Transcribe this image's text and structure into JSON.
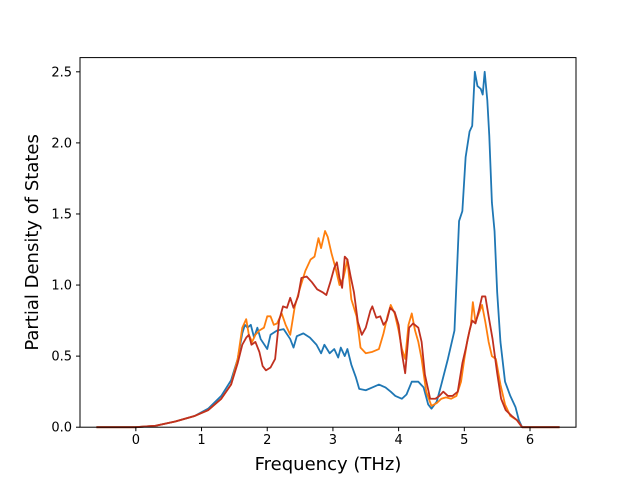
{
  "chart_data": {
    "type": "line",
    "title": "",
    "xlabel": "Frequency (THz)",
    "ylabel": "Partial Density of States",
    "xlim": [
      -0.85,
      6.7
    ],
    "ylim": [
      0.0,
      2.6
    ],
    "xticks": [
      0,
      1,
      2,
      3,
      4,
      5,
      6
    ],
    "yticks": [
      0.0,
      0.5,
      1.0,
      1.5,
      2.0,
      2.5
    ],
    "xtick_labels": [
      "0",
      "1",
      "2",
      "3",
      "4",
      "5",
      "6"
    ],
    "ytick_labels": [
      "0.0",
      "0.5",
      "1.0",
      "1.5",
      "2.0",
      "2.5"
    ],
    "grid": false,
    "legend": "none",
    "series": [
      {
        "color": "#1f77b4",
        "points": [
          [
            -0.6,
            0
          ],
          [
            0,
            0
          ],
          [
            0.3,
            0.01
          ],
          [
            0.6,
            0.04
          ],
          [
            0.9,
            0.08
          ],
          [
            1.1,
            0.13
          ],
          [
            1.3,
            0.22
          ],
          [
            1.45,
            0.33
          ],
          [
            1.55,
            0.48
          ],
          [
            1.62,
            0.66
          ],
          [
            1.66,
            0.72
          ],
          [
            1.7,
            0.7
          ],
          [
            1.75,
            0.72
          ],
          [
            1.8,
            0.63
          ],
          [
            1.85,
            0.7
          ],
          [
            1.9,
            0.62
          ],
          [
            2.0,
            0.55
          ],
          [
            2.05,
            0.65
          ],
          [
            2.15,
            0.68
          ],
          [
            2.25,
            0.69
          ],
          [
            2.35,
            0.62
          ],
          [
            2.4,
            0.56
          ],
          [
            2.45,
            0.64
          ],
          [
            2.55,
            0.66
          ],
          [
            2.65,
            0.63
          ],
          [
            2.75,
            0.58
          ],
          [
            2.82,
            0.52
          ],
          [
            2.87,
            0.58
          ],
          [
            2.95,
            0.52
          ],
          [
            3.02,
            0.55
          ],
          [
            3.08,
            0.49
          ],
          [
            3.12,
            0.56
          ],
          [
            3.18,
            0.5
          ],
          [
            3.22,
            0.55
          ],
          [
            3.28,
            0.44
          ],
          [
            3.35,
            0.35
          ],
          [
            3.4,
            0.27
          ],
          [
            3.5,
            0.26
          ],
          [
            3.6,
            0.28
          ],
          [
            3.7,
            0.3
          ],
          [
            3.8,
            0.28
          ],
          [
            3.88,
            0.25
          ],
          [
            3.95,
            0.22
          ],
          [
            4.05,
            0.2
          ],
          [
            4.12,
            0.23
          ],
          [
            4.2,
            0.32
          ],
          [
            4.3,
            0.32
          ],
          [
            4.38,
            0.28
          ],
          [
            4.45,
            0.16
          ],
          [
            4.5,
            0.13
          ],
          [
            4.58,
            0.18
          ],
          [
            4.65,
            0.3
          ],
          [
            4.75,
            0.48
          ],
          [
            4.85,
            0.68
          ],
          [
            4.92,
            1.45
          ],
          [
            4.97,
            1.52
          ],
          [
            5.02,
            1.9
          ],
          [
            5.08,
            2.08
          ],
          [
            5.12,
            2.12
          ],
          [
            5.16,
            2.5
          ],
          [
            5.2,
            2.4
          ],
          [
            5.25,
            2.38
          ],
          [
            5.28,
            2.34
          ],
          [
            5.31,
            2.5
          ],
          [
            5.35,
            2.3
          ],
          [
            5.38,
            2.05
          ],
          [
            5.42,
            1.58
          ],
          [
            5.46,
            1.38
          ],
          [
            5.5,
            0.95
          ],
          [
            5.55,
            0.6
          ],
          [
            5.62,
            0.32
          ],
          [
            5.7,
            0.22
          ],
          [
            5.78,
            0.14
          ],
          [
            5.83,
            0.05
          ],
          [
            5.88,
            0.0
          ],
          [
            6.0,
            0.0
          ],
          [
            6.45,
            0.0
          ]
        ]
      },
      {
        "color": "#ff7f0e",
        "points": [
          [
            -0.6,
            0
          ],
          [
            0,
            0
          ],
          [
            0.3,
            0.01
          ],
          [
            0.6,
            0.04
          ],
          [
            0.9,
            0.08
          ],
          [
            1.1,
            0.12
          ],
          [
            1.3,
            0.2
          ],
          [
            1.45,
            0.3
          ],
          [
            1.55,
            0.48
          ],
          [
            1.62,
            0.7
          ],
          [
            1.68,
            0.76
          ],
          [
            1.72,
            0.65
          ],
          [
            1.77,
            0.6
          ],
          [
            1.82,
            0.65
          ],
          [
            1.88,
            0.68
          ],
          [
            1.95,
            0.7
          ],
          [
            2.0,
            0.78
          ],
          [
            2.05,
            0.78
          ],
          [
            2.1,
            0.72
          ],
          [
            2.15,
            0.73
          ],
          [
            2.22,
            0.8
          ],
          [
            2.28,
            0.72
          ],
          [
            2.35,
            0.65
          ],
          [
            2.42,
            0.85
          ],
          [
            2.5,
            0.98
          ],
          [
            2.58,
            1.1
          ],
          [
            2.66,
            1.18
          ],
          [
            2.72,
            1.2
          ],
          [
            2.78,
            1.33
          ],
          [
            2.82,
            1.26
          ],
          [
            2.88,
            1.38
          ],
          [
            2.92,
            1.34
          ],
          [
            2.98,
            1.22
          ],
          [
            3.04,
            1.12
          ],
          [
            3.1,
            1.0
          ],
          [
            3.16,
            1.05
          ],
          [
            3.22,
            1.18
          ],
          [
            3.28,
            0.9
          ],
          [
            3.36,
            0.78
          ],
          [
            3.42,
            0.56
          ],
          [
            3.5,
            0.52
          ],
          [
            3.6,
            0.53
          ],
          [
            3.7,
            0.55
          ],
          [
            3.77,
            0.66
          ],
          [
            3.83,
            0.78
          ],
          [
            3.88,
            0.86
          ],
          [
            3.94,
            0.8
          ],
          [
            4.0,
            0.68
          ],
          [
            4.05,
            0.55
          ],
          [
            4.1,
            0.48
          ],
          [
            4.15,
            0.72
          ],
          [
            4.2,
            0.8
          ],
          [
            4.25,
            0.68
          ],
          [
            4.3,
            0.6
          ],
          [
            4.35,
            0.48
          ],
          [
            4.42,
            0.25
          ],
          [
            4.5,
            0.15
          ],
          [
            4.58,
            0.17
          ],
          [
            4.65,
            0.2
          ],
          [
            4.72,
            0.21
          ],
          [
            4.8,
            0.2
          ],
          [
            4.88,
            0.22
          ],
          [
            4.95,
            0.32
          ],
          [
            5.0,
            0.48
          ],
          [
            5.05,
            0.62
          ],
          [
            5.1,
            0.72
          ],
          [
            5.13,
            0.88
          ],
          [
            5.17,
            0.74
          ],
          [
            5.22,
            0.8
          ],
          [
            5.27,
            0.86
          ],
          [
            5.32,
            0.74
          ],
          [
            5.37,
            0.6
          ],
          [
            5.42,
            0.5
          ],
          [
            5.48,
            0.48
          ],
          [
            5.55,
            0.3
          ],
          [
            5.62,
            0.16
          ],
          [
            5.7,
            0.08
          ],
          [
            5.8,
            0.05
          ],
          [
            5.88,
            0.0
          ],
          [
            6.0,
            0.0
          ],
          [
            6.45,
            0.0
          ]
        ]
      },
      {
        "color": "#c0301f",
        "points": [
          [
            -0.6,
            0
          ],
          [
            0,
            0
          ],
          [
            0.3,
            0.01
          ],
          [
            0.6,
            0.04
          ],
          [
            0.9,
            0.08
          ],
          [
            1.1,
            0.12
          ],
          [
            1.3,
            0.2
          ],
          [
            1.45,
            0.3
          ],
          [
            1.55,
            0.45
          ],
          [
            1.62,
            0.58
          ],
          [
            1.68,
            0.63
          ],
          [
            1.72,
            0.65
          ],
          [
            1.76,
            0.58
          ],
          [
            1.82,
            0.6
          ],
          [
            1.88,
            0.53
          ],
          [
            1.93,
            0.43
          ],
          [
            1.98,
            0.4
          ],
          [
            2.05,
            0.42
          ],
          [
            2.12,
            0.48
          ],
          [
            2.18,
            0.75
          ],
          [
            2.24,
            0.85
          ],
          [
            2.3,
            0.84
          ],
          [
            2.35,
            0.91
          ],
          [
            2.4,
            0.84
          ],
          [
            2.47,
            0.92
          ],
          [
            2.52,
            1.05
          ],
          [
            2.6,
            1.06
          ],
          [
            2.68,
            1.02
          ],
          [
            2.76,
            0.97
          ],
          [
            2.84,
            0.95
          ],
          [
            2.9,
            0.93
          ],
          [
            2.96,
            1.02
          ],
          [
            3.02,
            1.12
          ],
          [
            3.06,
            1.16
          ],
          [
            3.1,
            1.05
          ],
          [
            3.14,
            0.98
          ],
          [
            3.18,
            1.2
          ],
          [
            3.22,
            1.18
          ],
          [
            3.27,
            1.06
          ],
          [
            3.32,
            0.95
          ],
          [
            3.38,
            0.74
          ],
          [
            3.44,
            0.65
          ],
          [
            3.5,
            0.7
          ],
          [
            3.57,
            0.82
          ],
          [
            3.6,
            0.85
          ],
          [
            3.66,
            0.77
          ],
          [
            3.72,
            0.78
          ],
          [
            3.77,
            0.72
          ],
          [
            3.82,
            0.75
          ],
          [
            3.87,
            0.84
          ],
          [
            3.94,
            0.81
          ],
          [
            4.0,
            0.72
          ],
          [
            4.05,
            0.52
          ],
          [
            4.1,
            0.38
          ],
          [
            4.16,
            0.7
          ],
          [
            4.22,
            0.73
          ],
          [
            4.3,
            0.7
          ],
          [
            4.35,
            0.6
          ],
          [
            4.4,
            0.37
          ],
          [
            4.48,
            0.2
          ],
          [
            4.56,
            0.2
          ],
          [
            4.62,
            0.22
          ],
          [
            4.68,
            0.25
          ],
          [
            4.75,
            0.22
          ],
          [
            4.82,
            0.22
          ],
          [
            4.9,
            0.25
          ],
          [
            4.97,
            0.45
          ],
          [
            5.02,
            0.55
          ],
          [
            5.08,
            0.68
          ],
          [
            5.12,
            0.75
          ],
          [
            5.17,
            0.73
          ],
          [
            5.22,
            0.82
          ],
          [
            5.27,
            0.92
          ],
          [
            5.32,
            0.92
          ],
          [
            5.37,
            0.78
          ],
          [
            5.43,
            0.62
          ],
          [
            5.5,
            0.38
          ],
          [
            5.56,
            0.2
          ],
          [
            5.63,
            0.12
          ],
          [
            5.72,
            0.08
          ],
          [
            5.8,
            0.05
          ],
          [
            5.88,
            0.0
          ],
          [
            6.0,
            0.0
          ],
          [
            6.45,
            0.0
          ]
        ]
      }
    ]
  }
}
